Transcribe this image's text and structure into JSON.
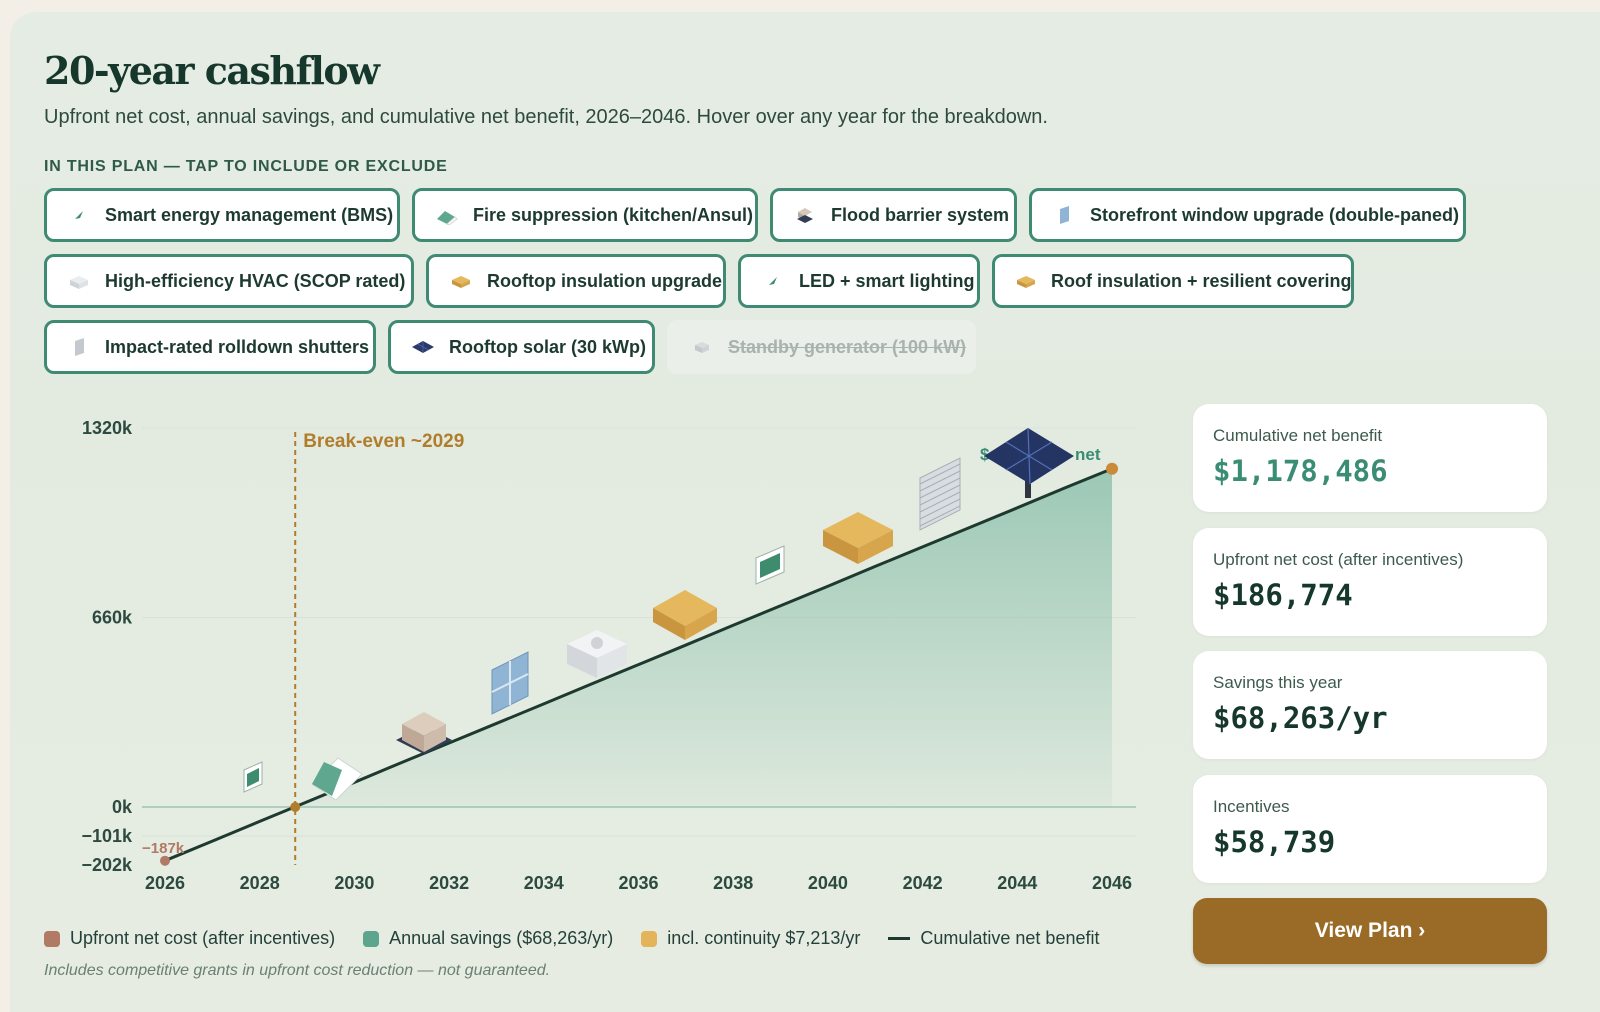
{
  "title": "20-year cashflow",
  "subtitle": "Upfront net cost, annual savings, and cumulative net benefit, 2026–2046. Hover over any year for the breakdown.",
  "plan_label": "IN THIS PLAN — TAP TO INCLUDE OR EXCLUDE",
  "chips": [
    {
      "label": "Smart energy management (BMS)",
      "icon": "leaf-icon",
      "included": true
    },
    {
      "label": "Fire suppression (kitchen/Ansul)",
      "icon": "fire-suppression-icon",
      "included": true
    },
    {
      "label": "Flood barrier system",
      "icon": "flood-barrier-icon",
      "included": true
    },
    {
      "label": "Storefront window upgrade (double-paned)",
      "icon": "window-icon",
      "included": true
    },
    {
      "label": "High-efficiency HVAC (SCOP rated)",
      "icon": "hvac-icon",
      "included": true
    },
    {
      "label": "Rooftop insulation upgrade",
      "icon": "insulation-icon",
      "included": true
    },
    {
      "label": "LED + smart lighting",
      "icon": "leaf-icon",
      "included": true
    },
    {
      "label": "Roof insulation + resilient covering",
      "icon": "roof-icon",
      "included": true
    },
    {
      "label": "Impact-rated rolldown shutters",
      "icon": "shutter-icon",
      "included": true
    },
    {
      "label": "Rooftop solar (30 kWp)",
      "icon": "solar-panel-icon",
      "included": true
    },
    {
      "label": "Standby generator (100 kW)",
      "icon": "generator-icon",
      "included": false
    }
  ],
  "stats": {
    "cumulative_label": "Cumulative net benefit",
    "cumulative_value": "$1,178,486",
    "upfront_label": "Upfront net cost (after incentives)",
    "upfront_value": "$186,774",
    "savings_label": "Savings this year",
    "savings_value": "$68,263/yr",
    "incentives_label": "Incentives",
    "incentives_value": "$58,739"
  },
  "view_button": "View Plan ›",
  "legend": {
    "upfront": "Upfront net cost (after incentives)",
    "savings": "Annual savings ($68,263/yr)",
    "continuity": "incl. continuity $7,213/yr",
    "cumulative": "Cumulative net benefit"
  },
  "footnote": "Includes competitive grants in upfront cost reduction — not guaranteed.",
  "colors": {
    "upfront": "#b07a64",
    "savings": "#5ea58e",
    "continuity": "#e3b45a",
    "cumulative": "#1e3a30",
    "breakeven": "#b07d2c",
    "area": "#8fc2ad"
  },
  "chart_data": {
    "type": "area",
    "x": [
      2026,
      2027,
      2028,
      2029,
      2030,
      2031,
      2032,
      2033,
      2034,
      2035,
      2036,
      2037,
      2038,
      2039,
      2040,
      2041,
      2042,
      2043,
      2044,
      2045,
      2046
    ],
    "series": [
      {
        "name": "Cumulative net benefit",
        "values": [
          -187,
          -119,
          -50,
          18,
          86,
          155,
          223,
          291,
          359,
          428,
          496,
          564,
          633,
          701,
          769,
          838,
          906,
          974,
          1042,
          1111,
          1178
        ]
      }
    ],
    "x_ticks": [
      "2026",
      "2028",
      "2030",
      "2032",
      "2034",
      "2036",
      "2038",
      "2040",
      "2042",
      "2044",
      "2046"
    ],
    "y_ticks": [
      {
        "value": -202,
        "label": "−202k"
      },
      {
        "value": -101,
        "label": "−101k"
      },
      {
        "value": 0,
        "label": "0k"
      },
      {
        "value": 660,
        "label": "660k"
      },
      {
        "value": 1320,
        "label": "1320k"
      }
    ],
    "ylim": [
      -202,
      1320
    ],
    "breakeven_year": 2029,
    "breakeven_label": "Break-even ~2029",
    "start_label": "−187k",
    "end_label_prefix": "$",
    "end_label_suffix": "net",
    "grid": true
  }
}
